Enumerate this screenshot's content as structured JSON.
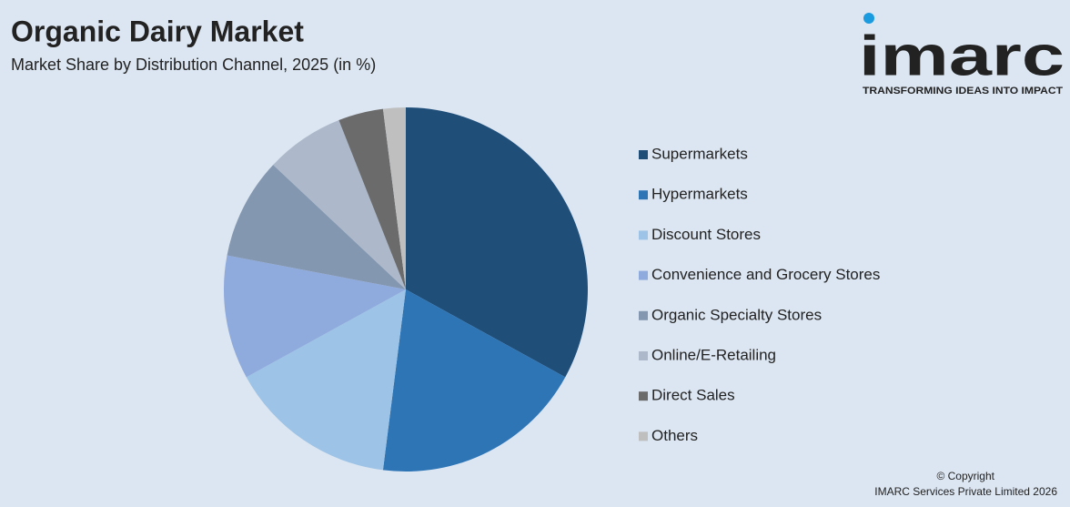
{
  "chart_data": {
    "type": "pie",
    "title": "Organic Dairy Market",
    "subtitle": "Market Share by Distribution Channel, 2025 (in %)",
    "categories": [
      "Supermarkets",
      "Hypermarkets",
      "Discount Stores",
      "Convenience and Grocery Stores",
      "Organic Specialty Stores",
      "Online/E-Retailing",
      "Direct Sales",
      "Others"
    ],
    "values": [
      33,
      19,
      15,
      11,
      9,
      7,
      4,
      2
    ],
    "colors": [
      "#1f4e79",
      "#2e75b6",
      "#9dc3e6",
      "#8faadc",
      "#8497b0",
      "#adb9ca",
      "#6b6b6b",
      "#bfbfbf"
    ],
    "legend": "right"
  },
  "logo": {
    "name": "imarc",
    "tagline": "TRANSFORMING IDEAS INTO IMPACT"
  },
  "footer": {
    "copyright": "© Copyright",
    "owner": "IMARC Services Private Limited 2026"
  }
}
